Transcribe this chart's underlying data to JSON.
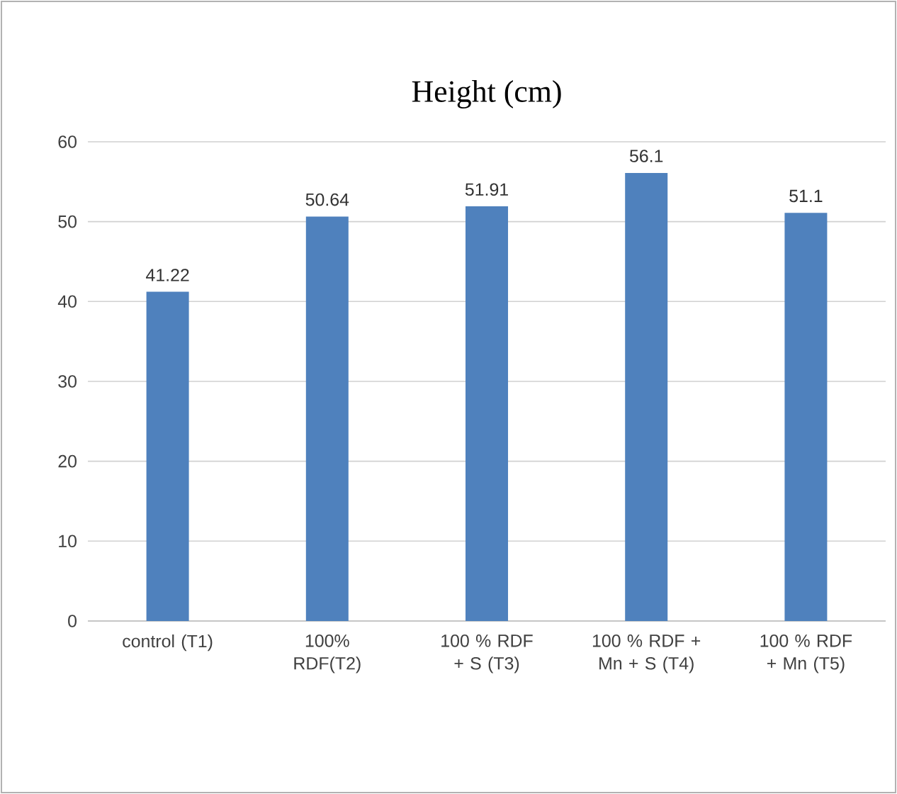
{
  "chart_data": {
    "type": "bar",
    "title": "Height (cm)",
    "categories": [
      "control (T1)",
      "100% RDF(T2)",
      "100 % RDF + S (T3)",
      "100 % RDF + Mn + S (T4)",
      "100 % RDF + Mn (T5)"
    ],
    "values": [
      41.22,
      50.64,
      51.91,
      56.1,
      51.1
    ],
    "color": "#4f81bd",
    "ylim": [
      0,
      60
    ],
    "yticks": [
      0,
      10,
      20,
      30,
      40,
      50,
      60
    ],
    "grid": "y",
    "data_labels": true
  }
}
